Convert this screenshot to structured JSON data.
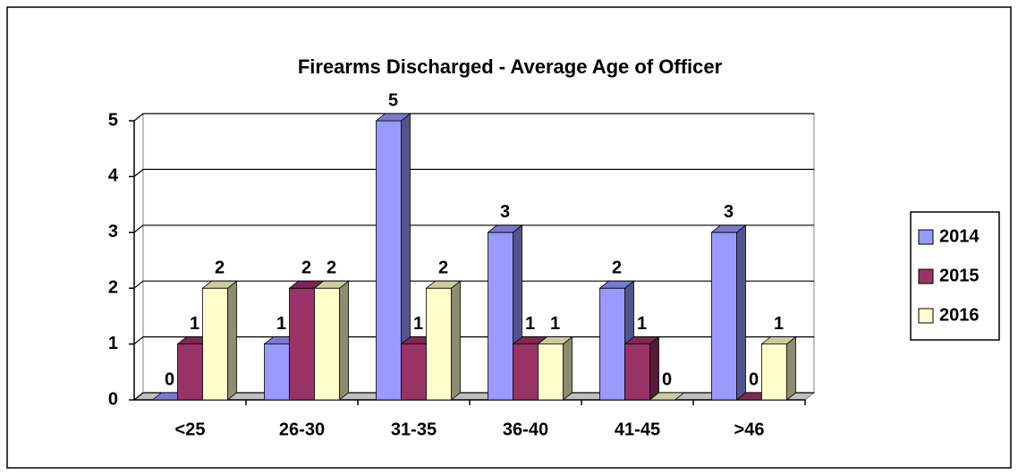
{
  "chart_data": {
    "type": "bar3d",
    "title": "Firearms Discharged - Average Age of Officer",
    "categories": [
      "<25",
      "26-30",
      "31-35",
      "36-40",
      "41-45",
      ">46"
    ],
    "series": [
      {
        "name": "2014",
        "color": "#9999ff",
        "values": [
          0,
          1,
          5,
          3,
          2,
          3
        ]
      },
      {
        "name": "2015",
        "color": "#993366",
        "values": [
          1,
          2,
          1,
          1,
          1,
          0
        ]
      },
      {
        "name": "2016",
        "color": "#ffffcc",
        "values": [
          2,
          2,
          2,
          1,
          0,
          1
        ]
      }
    ],
    "ylim": [
      0,
      5
    ],
    "yticks": [
      0,
      1,
      2,
      3,
      4,
      5
    ],
    "grid": true,
    "legend": "right"
  }
}
